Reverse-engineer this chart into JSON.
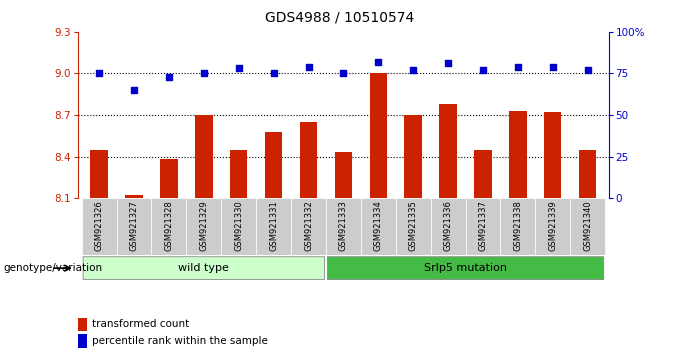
{
  "title": "GDS4988 / 10510574",
  "samples": [
    "GSM921326",
    "GSM921327",
    "GSM921328",
    "GSM921329",
    "GSM921330",
    "GSM921331",
    "GSM921332",
    "GSM921333",
    "GSM921334",
    "GSM921335",
    "GSM921336",
    "GSM921337",
    "GSM921338",
    "GSM921339",
    "GSM921340"
  ],
  "bar_values": [
    8.45,
    8.12,
    8.38,
    8.7,
    8.45,
    8.58,
    8.65,
    8.43,
    9.0,
    8.7,
    8.78,
    8.45,
    8.73,
    8.72,
    8.45
  ],
  "dot_values_pct": [
    75,
    65,
    73,
    75,
    78,
    75,
    79,
    75,
    82,
    77,
    81,
    77,
    79,
    79,
    77
  ],
  "bar_bottom": 8.1,
  "ylim": [
    8.1,
    9.3
  ],
  "yticks": [
    8.1,
    8.4,
    8.7,
    9.0,
    9.3
  ],
  "right_ylim": [
    0,
    100
  ],
  "right_yticks": [
    0,
    25,
    50,
    75,
    100
  ],
  "right_yticklabels": [
    "0",
    "25",
    "50",
    "75",
    "100%"
  ],
  "hlines": [
    8.4,
    8.7,
    9.0
  ],
  "bar_color": "#cc2200",
  "dot_color": "#0000cc",
  "wild_type_label": "wild type",
  "mutation_label": "Srlp5 mutation",
  "wild_type_count": 7,
  "mutation_count": 8,
  "group_bg_wild": "#ccffcc",
  "group_bg_mut": "#44bb44",
  "group_label_text": "genotype/variation",
  "legend_bar_label": "transformed count",
  "legend_dot_label": "percentile rank within the sample",
  "bar_width": 0.5,
  "tick_bg_color": "#cccccc"
}
